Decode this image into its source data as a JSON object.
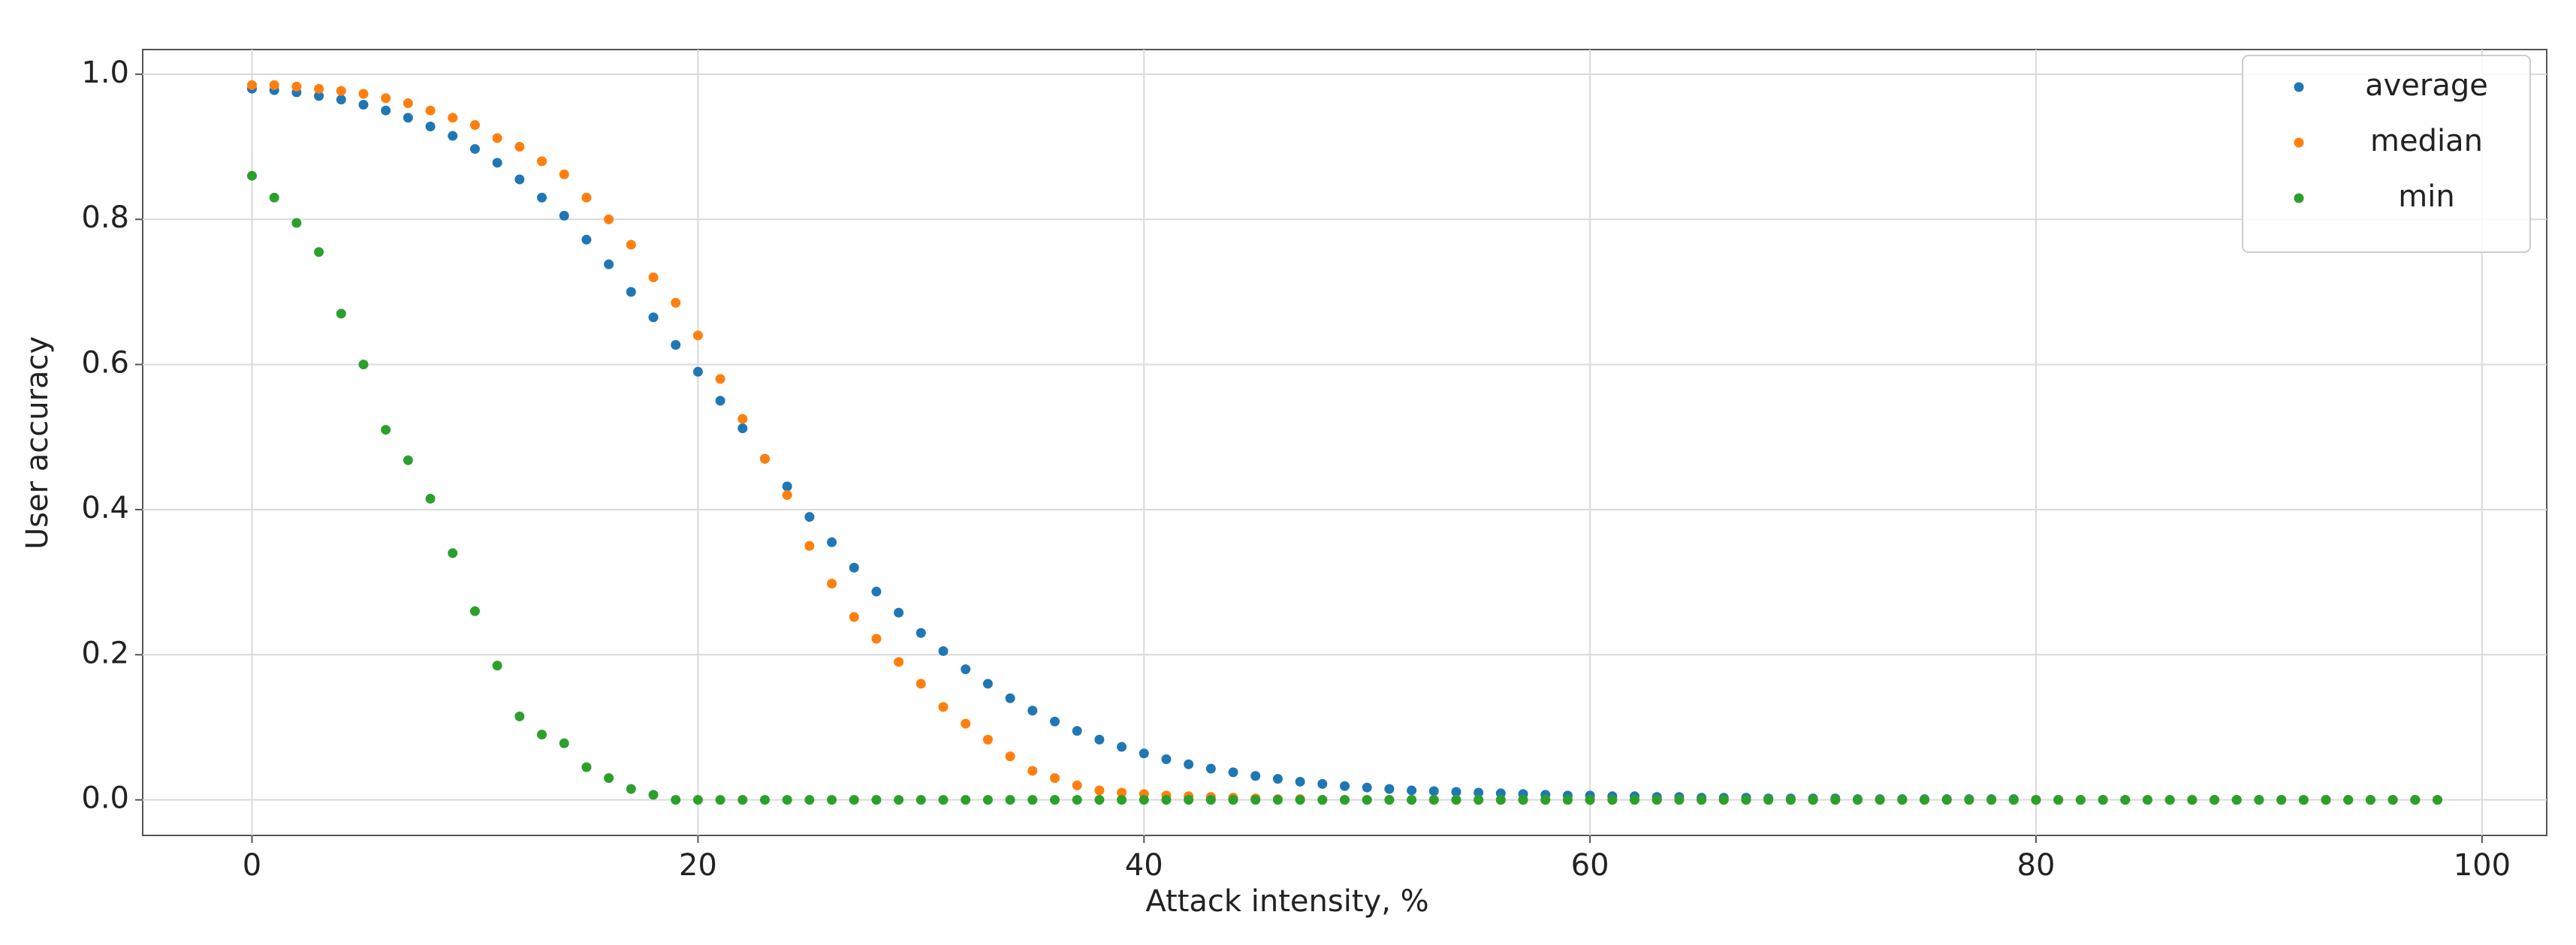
{
  "chart_data": {
    "type": "scatter",
    "xlabel": "Attack intensity, %",
    "ylabel": "User accuracy",
    "x": [
      0,
      1,
      2,
      3,
      4,
      5,
      6,
      7,
      8,
      9,
      10,
      11,
      12,
      13,
      14,
      15,
      16,
      17,
      18,
      19,
      20,
      21,
      22,
      23,
      24,
      25,
      26,
      27,
      28,
      29,
      30,
      31,
      32,
      33,
      34,
      35,
      36,
      37,
      38,
      39,
      40,
      41,
      42,
      43,
      44,
      45,
      46,
      47,
      48,
      49,
      50,
      51,
      52,
      53,
      54,
      55,
      56,
      57,
      58,
      59,
      60,
      61,
      62,
      63,
      64,
      65,
      66,
      67,
      68,
      69,
      70,
      71,
      72,
      73,
      74,
      75,
      76,
      77,
      78,
      79,
      80,
      81,
      82,
      83,
      84,
      85,
      86,
      87,
      88,
      89,
      90,
      91,
      92,
      93,
      94,
      95,
      96,
      97,
      98
    ],
    "series": [
      {
        "name": "average",
        "color": "#1f77b4",
        "values": [
          0.98,
          0.978,
          0.975,
          0.97,
          0.965,
          0.958,
          0.95,
          0.94,
          0.928,
          0.915,
          0.897,
          0.878,
          0.855,
          0.83,
          0.805,
          0.772,
          0.738,
          0.7,
          0.665,
          0.627,
          0.59,
          0.55,
          0.512,
          0.47,
          0.432,
          0.39,
          0.355,
          0.32,
          0.287,
          0.258,
          0.23,
          0.205,
          0.18,
          0.16,
          0.14,
          0.123,
          0.108,
          0.095,
          0.083,
          0.073,
          0.064,
          0.056,
          0.049,
          0.043,
          0.038,
          0.033,
          0.029,
          0.025,
          0.022,
          0.019,
          0.017,
          0.015,
          0.013,
          0.012,
          0.011,
          0.01,
          0.009,
          0.008,
          0.007,
          0.006,
          0.006,
          0.005,
          0.005,
          0.004,
          0.004,
          0.003,
          0.003,
          0.003,
          0.002,
          0.002,
          0.002,
          0.002,
          0.001,
          0.001,
          0.001,
          0.001,
          0.001,
          0.001,
          0.001,
          0.001,
          0,
          0,
          0,
          0,
          0,
          0,
          0,
          0,
          0,
          0,
          0,
          0,
          0,
          0,
          0,
          0,
          0,
          0,
          0
        ]
      },
      {
        "name": "median",
        "color": "#ff7f0e",
        "values": [
          0.985,
          0.985,
          0.983,
          0.98,
          0.977,
          0.973,
          0.967,
          0.96,
          0.95,
          0.94,
          0.93,
          0.912,
          0.9,
          0.88,
          0.862,
          0.83,
          0.8,
          0.765,
          0.72,
          0.685,
          0.64,
          0.58,
          0.525,
          0.47,
          0.42,
          0.35,
          0.298,
          0.252,
          0.222,
          0.19,
          0.16,
          0.128,
          0.105,
          0.083,
          0.06,
          0.04,
          0.03,
          0.02,
          0.013,
          0.01,
          0.008,
          0.006,
          0.005,
          0.004,
          0.003,
          0.002,
          0.001,
          0.001,
          0,
          0,
          0,
          0,
          0,
          0,
          0,
          0,
          0,
          0,
          0,
          0,
          0,
          0,
          0,
          0,
          0,
          0,
          0,
          0,
          0,
          0,
          0,
          0,
          0,
          0,
          0,
          0,
          0,
          0,
          0,
          0,
          0,
          0,
          0,
          0,
          0,
          0,
          0,
          0,
          0,
          0,
          0,
          0,
          0,
          0,
          0,
          0,
          0,
          0,
          0
        ]
      },
      {
        "name": "min",
        "color": "#2ca02c",
        "values": [
          0.86,
          0.83,
          0.795,
          0.755,
          0.67,
          0.6,
          0.51,
          0.468,
          0.415,
          0.34,
          0.26,
          0.185,
          0.115,
          0.09,
          0.078,
          0.045,
          0.03,
          0.015,
          0.007,
          0,
          0,
          0,
          0,
          0,
          0,
          0,
          0,
          0,
          0,
          0,
          0,
          0,
          0,
          0,
          0,
          0,
          0,
          0,
          0,
          0,
          0,
          0,
          0,
          0,
          0,
          0,
          0,
          0,
          0,
          0,
          0,
          0,
          0,
          0,
          0,
          0,
          0,
          0,
          0,
          0,
          0,
          0,
          0,
          0,
          0,
          0,
          0,
          0,
          0,
          0,
          0,
          0,
          0,
          0,
          0,
          0,
          0,
          0,
          0,
          0,
          0,
          0,
          0,
          0,
          0,
          0,
          0,
          0,
          0,
          0,
          0,
          0,
          0,
          0,
          0,
          0,
          0,
          0,
          0
        ]
      }
    ],
    "xlim": [
      -4.9,
      102.9
    ],
    "ylim": [
      -0.049,
      1.034
    ],
    "xticks": [
      0,
      20,
      40,
      60,
      80,
      100
    ],
    "yticks": [
      {
        "value": 0,
        "label": "0.0"
      },
      0.2,
      0.4,
      0.6,
      0.8,
      {
        "value": 1,
        "label": "1.0"
      }
    ],
    "grid": true,
    "legend": "upper right"
  }
}
